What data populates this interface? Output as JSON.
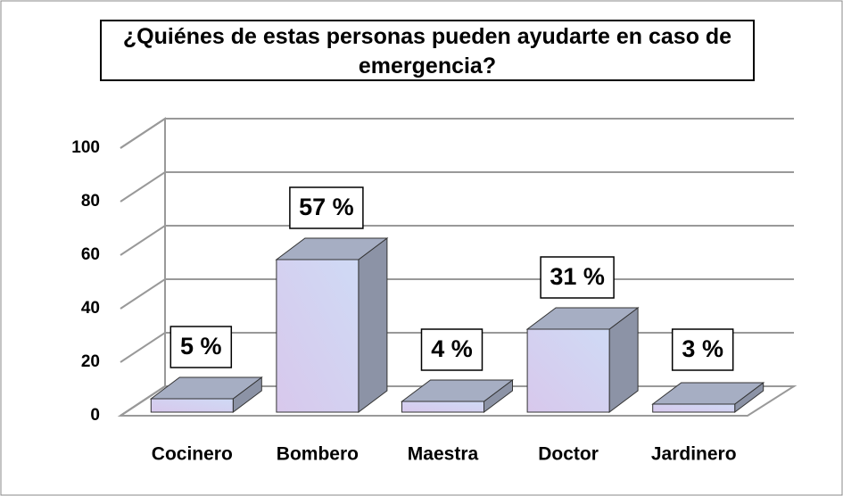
{
  "chart_data": {
    "type": "bar3d",
    "title": "¿Quiénes de estas personas pueden ayudarte en caso de emergencia?",
    "categories": [
      "Cocinero",
      "Bombero",
      "Maestra",
      "Doctor",
      "Jardinero"
    ],
    "values": [
      5,
      57,
      4,
      31,
      3
    ],
    "value_labels": [
      "5 %",
      "57 %",
      "4 %",
      "31 %",
      "3 %"
    ],
    "color": "#cfdaf5",
    "ylim": [
      0,
      100
    ],
    "yticks": [
      0,
      20,
      40,
      60,
      80,
      100
    ],
    "grid": true
  }
}
